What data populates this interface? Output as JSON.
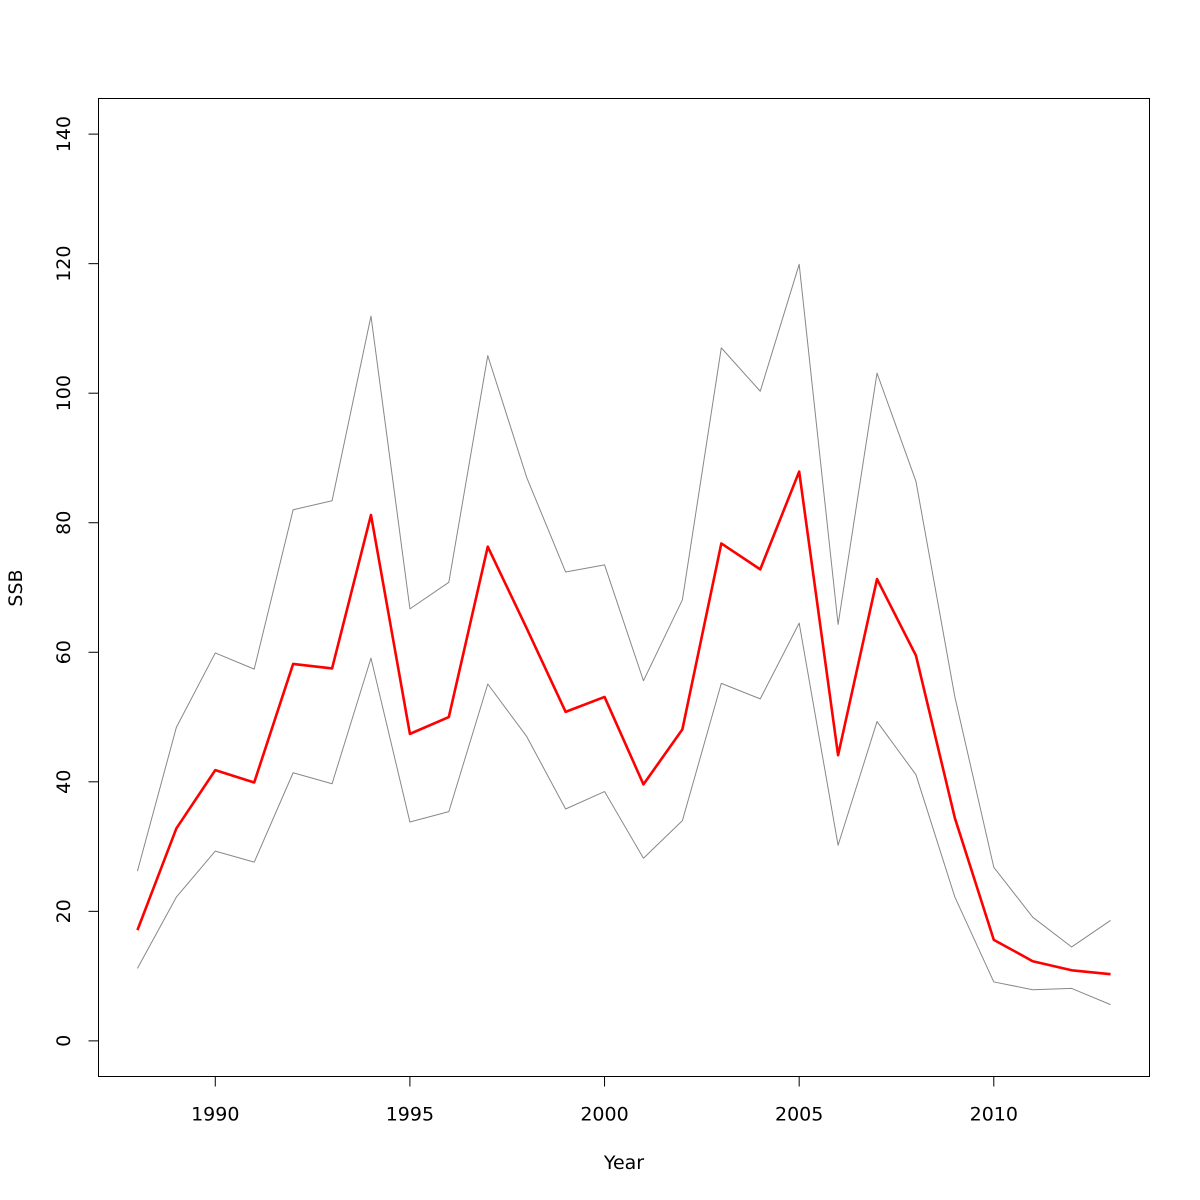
{
  "chart_data": {
    "type": "line",
    "title": "",
    "xlabel": "Year",
    "ylabel": "SSB",
    "xlim": [
      1987,
      2014
    ],
    "ylim": [
      -5.5,
      145.5
    ],
    "x_ticks": [
      "1990",
      "1995",
      "2000",
      "2005",
      "2010"
    ],
    "y_ticks": [
      "0",
      "20",
      "40",
      "60",
      "80",
      "100",
      "120",
      "140"
    ],
    "grid": false,
    "legend": "none",
    "x": [
      1988,
      1989,
      1990,
      1991,
      1992,
      1993,
      1994,
      1995,
      1996,
      1997,
      1998,
      1999,
      2000,
      2001,
      2002,
      2003,
      2004,
      2005,
      2006,
      2007,
      2008,
      2009,
      2010,
      2011,
      2012,
      2013
    ],
    "series": [
      {
        "color": "#ff0000",
        "values": [
          17.1,
          32.8,
          41.8,
          39.9,
          58.2,
          57.5,
          81.2,
          47.4,
          50.0,
          76.3,
          63.7,
          50.8,
          53.1,
          39.6,
          48.1,
          76.8,
          72.8,
          87.9,
          44.1,
          71.3,
          59.5,
          34.4,
          15.6,
          12.3,
          10.9,
          10.3
        ]
      },
      {
        "color": "#888888",
        "values": [
          26.2,
          48.4,
          59.9,
          57.4,
          82.0,
          83.4,
          111.9,
          66.7,
          70.8,
          105.8,
          87.0,
          72.4,
          73.5,
          55.6,
          68.1,
          107.0,
          100.3,
          119.9,
          64.3,
          103.1,
          86.4,
          53.1,
          26.8,
          19.1,
          14.5,
          18.6
        ]
      },
      {
        "color": "#888888",
        "values": [
          11.2,
          22.2,
          29.3,
          27.6,
          41.4,
          39.7,
          59.1,
          33.8,
          35.4,
          55.1,
          47.0,
          35.8,
          38.5,
          28.2,
          34.0,
          55.2,
          52.8,
          64.5,
          30.2,
          49.3,
          41.1,
          22.2,
          9.1,
          7.9,
          8.1,
          5.6
        ]
      }
    ]
  }
}
